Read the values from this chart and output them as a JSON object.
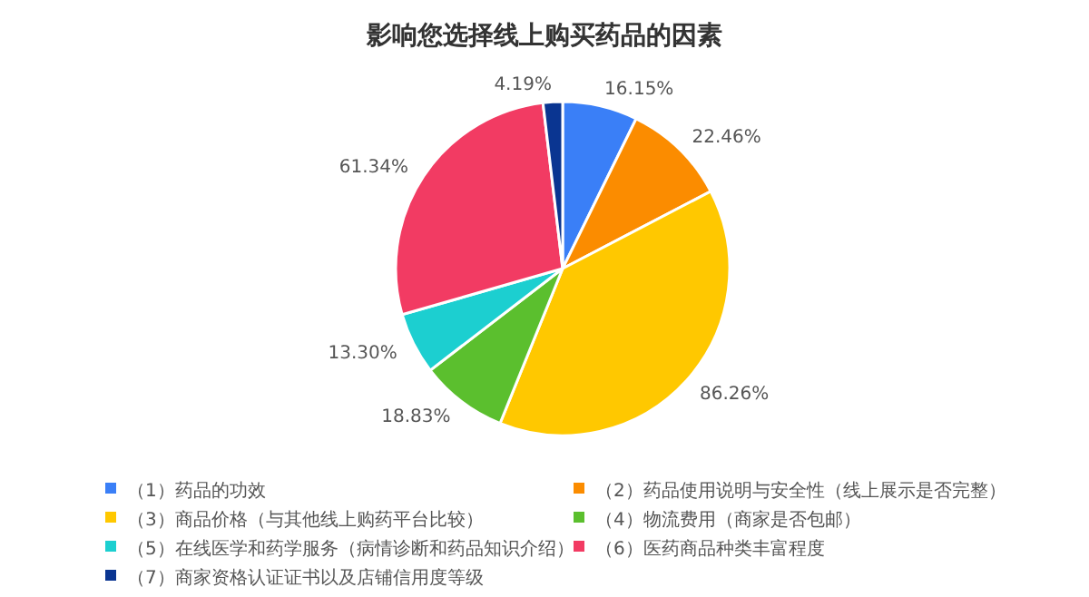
{
  "chart_data": {
    "type": "pie",
    "title": "影响您选择线上购买药品的因素",
    "categories": [
      "（1）药品的功效",
      "（2）药品使用说明与安全性（线上展示是否完整）",
      "（3）商品价格（与其他线上购药平台比较）",
      "（4）物流费用（商家是否包邮）",
      "（5）在线医学和药学服务（病情诊断和药品知识介绍）",
      "（6）医药商品种类丰富程度",
      "（7）商家资格认证证书以及店铺信用度等级"
    ],
    "values": [
      16.15,
      22.46,
      86.26,
      18.83,
      13.3,
      61.34,
      4.19
    ],
    "value_labels": [
      "16.15%",
      "22.46%",
      "86.26%",
      "18.83%",
      "13.30%",
      "61.34%",
      "4.19%"
    ],
    "colors": [
      "#3a7ff7",
      "#fb8c00",
      "#ffc800",
      "#5bbf2e",
      "#1ccfd0",
      "#f23b63",
      "#0a3591"
    ],
    "legend": "bottom"
  }
}
